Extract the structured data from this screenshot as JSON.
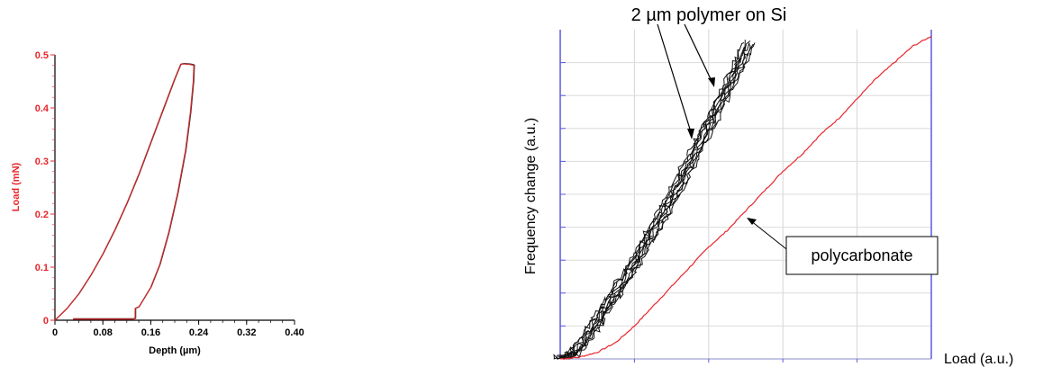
{
  "chart_data": [
    {
      "type": "line",
      "title": "",
      "xlabel": "Depth (µm)",
      "ylabel": "Load (mN)",
      "xlim": [
        0,
        0.4
      ],
      "ylim": [
        0,
        0.5
      ],
      "x_ticks": [
        "0",
        "0.08",
        "0.16",
        "0.24",
        "0.32",
        "0.40"
      ],
      "y_ticks": [
        "0",
        "0.1",
        "0.2",
        "0.3",
        "0.4",
        "0.5"
      ],
      "grid": false,
      "colors": {
        "axis": "#000000",
        "ylabel": "#e8262c",
        "curve_main": "#cc2a2a",
        "curve_overlay": "#222222"
      },
      "series": [
        {
          "x": [
            0.0,
            0.02,
            0.04,
            0.06,
            0.08,
            0.1,
            0.12,
            0.14,
            0.16,
            0.18,
            0.2,
            0.21,
            0.215,
            0.225,
            0.23,
            0.232,
            0.231,
            0.226,
            0.218,
            0.205,
            0.19,
            0.175,
            0.16,
            0.145,
            0.14,
            0.134,
            0.134,
            0.13,
            0.1,
            0.06,
            0.03
          ],
          "y": [
            0.0,
            0.022,
            0.05,
            0.085,
            0.125,
            0.17,
            0.22,
            0.275,
            0.335,
            0.395,
            0.455,
            0.482,
            0.483,
            0.482,
            0.481,
            0.48,
            0.45,
            0.39,
            0.32,
            0.24,
            0.165,
            0.105,
            0.062,
            0.034,
            0.025,
            0.022,
            0.003,
            0.002,
            0.002,
            0.002,
            0.002
          ]
        }
      ]
    },
    {
      "type": "line",
      "title": "",
      "xlabel": "Load (a.u.)",
      "ylabel": "Frequency change (a.u.)",
      "annotations": [
        "2 µm polymer on Si",
        "polycarbonate"
      ],
      "grid": true,
      "colors": {
        "polycarbonate": "#e8262c",
        "polymer": "#111111",
        "side_axes": "#5a5ae0",
        "grid": "#cccccc"
      },
      "series": [
        {
          "x": [
            0,
            0.05,
            0.1,
            0.15,
            0.2,
            0.25,
            0.3,
            0.35,
            0.4,
            0.45,
            0.5,
            0.55,
            0.6,
            0.65,
            0.7,
            0.75,
            0.8,
            0.85,
            0.9,
            0.95,
            1.0
          ],
          "y": [
            0,
            0.005,
            0.02,
            0.05,
            0.1,
            0.16,
            0.22,
            0.28,
            0.34,
            0.39,
            0.45,
            0.51,
            0.57,
            0.62,
            0.68,
            0.73,
            0.79,
            0.85,
            0.9,
            0.95,
            0.98
          ]
        },
        {
          "x": [
            0,
            0.04,
            0.08,
            0.12,
            0.16,
            0.2,
            0.24,
            0.28,
            0.32,
            0.36,
            0.4,
            0.44,
            0.48,
            0.51
          ],
          "y": [
            0,
            0.02,
            0.08,
            0.15,
            0.22,
            0.29,
            0.37,
            0.45,
            0.53,
            0.62,
            0.71,
            0.8,
            0.89,
            0.97
          ]
        }
      ]
    }
  ]
}
